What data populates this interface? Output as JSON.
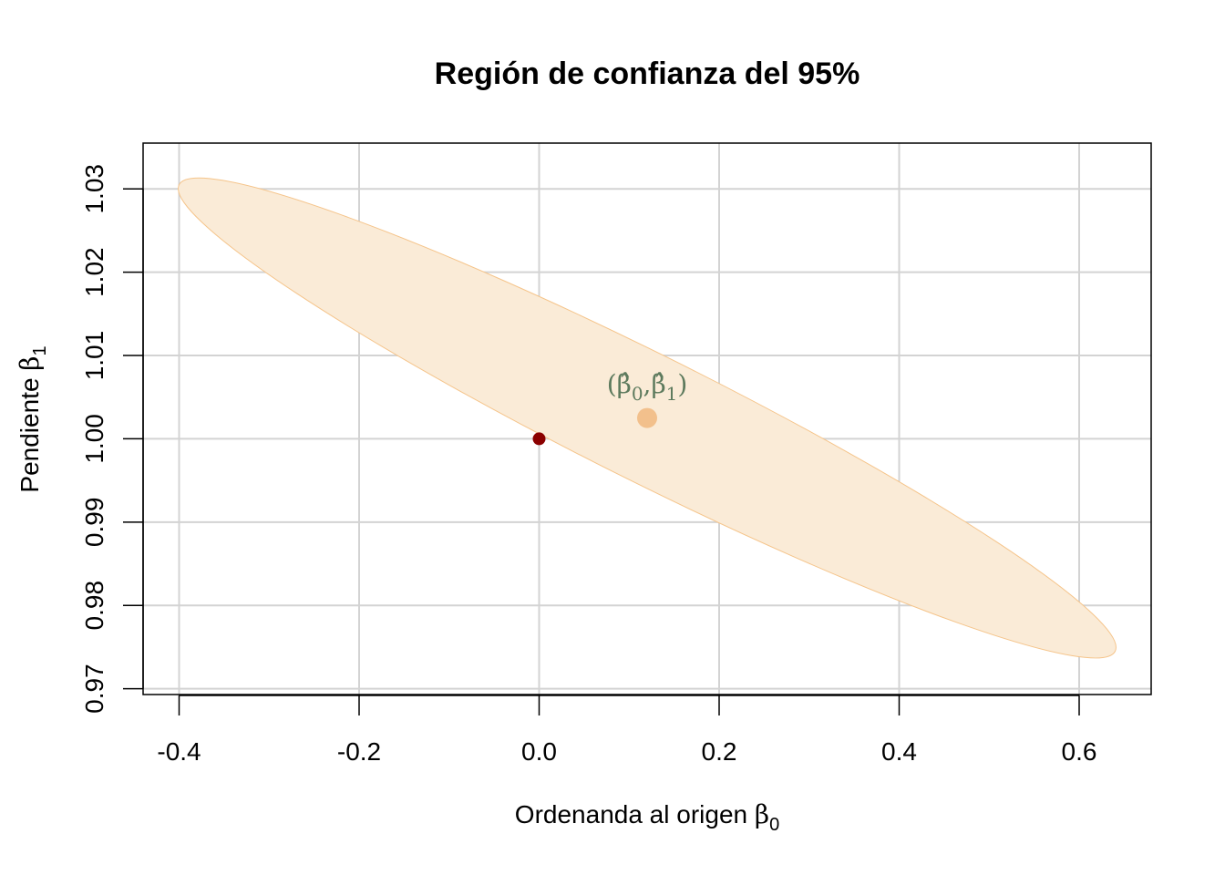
{
  "chart_data": {
    "type": "scatter",
    "title": "Región de confianza del 95%",
    "xlabel": {
      "text": "Ordenanda al origen ",
      "symbol": "β",
      "sub": "0"
    },
    "ylabel": {
      "text": "Pendiente ",
      "symbol": "β",
      "sub": "1"
    },
    "xlim": [
      -0.44,
      0.68
    ],
    "ylim": [
      0.9693,
      1.0355
    ],
    "xticks": [
      -0.4,
      -0.2,
      0.0,
      0.2,
      0.4,
      0.6
    ],
    "xtick_labels": [
      "-0.4",
      "-0.2",
      "0.0",
      "0.2",
      "0.4",
      "0.6"
    ],
    "yticks": [
      0.97,
      0.98,
      0.99,
      1.0,
      1.01,
      1.02,
      1.03
    ],
    "ytick_labels": [
      "0.97",
      "0.98",
      "0.99",
      "1.00",
      "1.01",
      "1.02",
      "1.03"
    ],
    "grid": true,
    "confidence_region": {
      "level": 0.95,
      "center": [
        0.12,
        1.0025
      ],
      "extremes": [
        [
          -0.4,
          1.0305
        ],
        [
          0.64,
          0.9745
        ]
      ],
      "fill_color": "#faebd7",
      "border_color": "#f5c48a"
    },
    "points": [
      {
        "x": 0.0,
        "y": 1.0,
        "color": "#8b0000"
      },
      {
        "x": 0.12,
        "y": 1.0025,
        "color": "#f2c08c"
      }
    ],
    "annotation": {
      "x": 0.12,
      "y": 1.0066,
      "open": "(",
      "part1_symbol": "β̂",
      "part1_sub": "0",
      "comma": ",",
      "part2_symbol": "β̂",
      "part2_sub": "1",
      "close": ")",
      "color": "#5d7a5d"
    }
  }
}
